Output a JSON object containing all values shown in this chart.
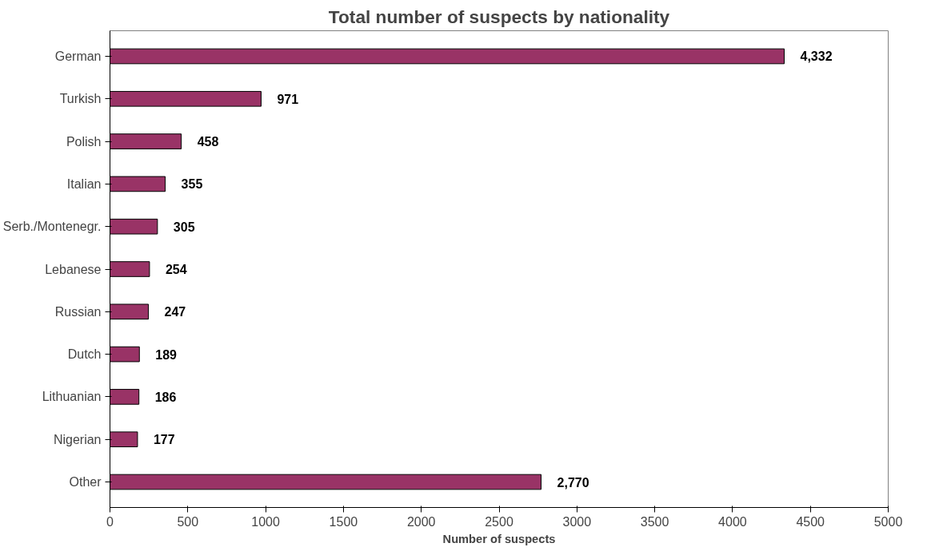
{
  "chart_data": {
    "type": "bar",
    "orientation": "horizontal",
    "title": "Total number of suspects by nationality",
    "xlabel": "Number of suspects",
    "categories": [
      "German",
      "Turkish",
      "Polish",
      "Italian",
      "Serb./Montenegr.",
      "Lebanese",
      "Russian",
      "Dutch",
      "Lithuanian",
      "Nigerian",
      "Other"
    ],
    "values": [
      4332,
      971,
      458,
      355,
      305,
      254,
      247,
      189,
      186,
      177,
      2770
    ],
    "value_labels": [
      "4,332",
      "971",
      "458",
      "355",
      "305",
      "254",
      "247",
      "189",
      "186",
      "177",
      "2,770"
    ],
    "color": "#993366",
    "xlim": [
      0,
      5000
    ],
    "xticks": [
      0,
      500,
      1000,
      1500,
      2000,
      2500,
      3000,
      3500,
      4000,
      4500,
      5000
    ],
    "grid": false
  }
}
